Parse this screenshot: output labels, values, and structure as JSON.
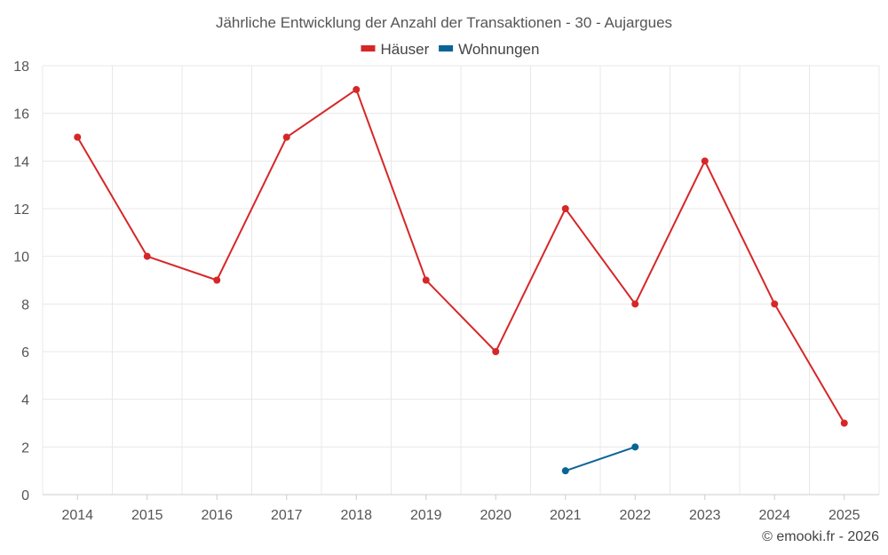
{
  "chart_data": {
    "type": "line",
    "title": "Jährliche Entwicklung der Anzahl der Transaktionen - 30 - Aujargues",
    "categories": [
      "2014",
      "2015",
      "2016",
      "2017",
      "2018",
      "2019",
      "2020",
      "2021",
      "2022",
      "2023",
      "2024",
      "2025"
    ],
    "ylim": [
      0,
      18
    ],
    "yticks": [
      0,
      2,
      4,
      6,
      8,
      10,
      12,
      14,
      16,
      18
    ],
    "xlabel": "",
    "ylabel": "",
    "grid": true,
    "legend_position": "top-center",
    "series": [
      {
        "name": "Häuser",
        "color": "#d62728",
        "values": [
          15,
          10,
          9,
          15,
          17,
          9,
          6,
          12,
          8,
          14,
          8,
          3
        ]
      },
      {
        "name": "Wohnungen",
        "color": "#0a6496",
        "values": [
          null,
          null,
          null,
          null,
          null,
          null,
          null,
          1,
          2,
          null,
          null,
          null
        ]
      }
    ]
  },
  "credit": "© emooki.fr - 2026"
}
